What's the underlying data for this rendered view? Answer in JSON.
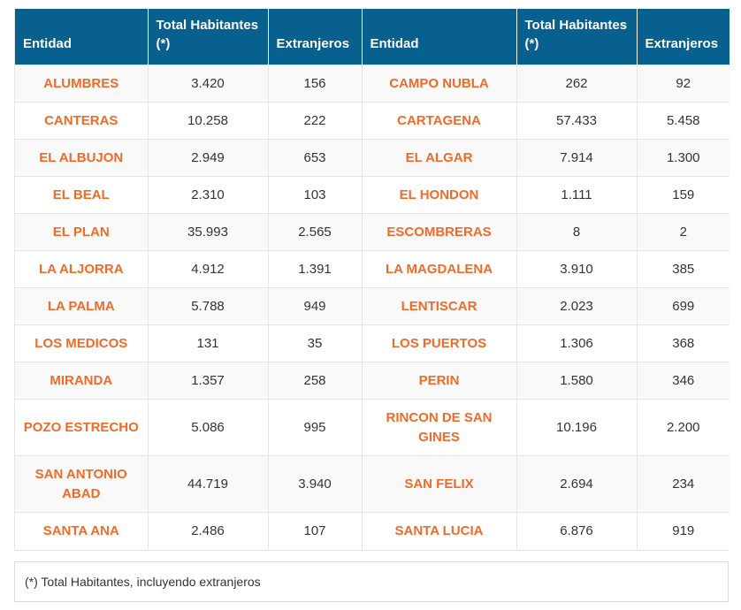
{
  "headers": [
    "Entidad",
    "Total Habitantes (*)",
    "Extranjeros",
    "Entidad",
    "Total Habitantes (*)",
    "Extranjeros"
  ],
  "rows": [
    [
      "ALUMBRES",
      "3.420",
      "156",
      "CAMPO NUBLA",
      "262",
      "92"
    ],
    [
      "CANTERAS",
      "10.258",
      "222",
      "CARTAGENA",
      "57.433",
      "5.458"
    ],
    [
      "EL ALBUJON",
      "2.949",
      "653",
      "EL ALGAR",
      "7.914",
      "1.300"
    ],
    [
      "EL BEAL",
      "2.310",
      "103",
      "EL HONDON",
      "1.111",
      "159"
    ],
    [
      "EL PLAN",
      "35.993",
      "2.565",
      "ESCOMBRERAS",
      "8",
      "2"
    ],
    [
      "LA ALJORRA",
      "4.912",
      "1.391",
      "LA MAGDALENA",
      "3.910",
      "385"
    ],
    [
      "LA PALMA",
      "5.788",
      "949",
      "LENTISCAR",
      "2.023",
      "699"
    ],
    [
      "LOS MEDICOS",
      "131",
      "35",
      "LOS PUERTOS",
      "1.306",
      "368"
    ],
    [
      "MIRANDA",
      "1.357",
      "258",
      "PERIN",
      "1.580",
      "346"
    ],
    [
      "POZO ESTRECHO",
      "5.086",
      "995",
      "RINCON DE SAN GINES",
      "10.196",
      "2.200"
    ],
    [
      "SAN ANTONIO ABAD",
      "44.719",
      "3.940",
      "SAN FELIX",
      "2.694",
      "234"
    ],
    [
      "SANTA ANA",
      "2.486",
      "107",
      "SANTA LUCIA",
      "6.876",
      "919"
    ]
  ],
  "footnote": "(*) Total Habitantes, incluyendo extranjeros",
  "colors": {
    "header_bg": "#08608f",
    "name_text": "#f26a28",
    "stripe": "#f9f9f9"
  }
}
